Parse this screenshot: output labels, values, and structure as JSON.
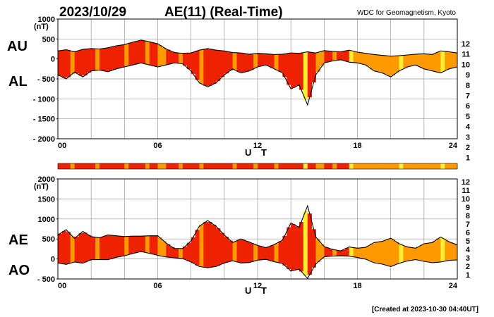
{
  "header": {
    "date": "2023/10/29",
    "title": "AE(11) (Real-Time)",
    "source": "WDC for Geomagnetism, Kyoto",
    "footer": "[Created at 2023-10-30 04:40UT]"
  },
  "kp_scale": {
    "labels": [
      "12",
      "11",
      "10",
      "9",
      "8",
      "7",
      "6",
      "5",
      "4",
      "3",
      "2",
      "1"
    ],
    "colors": [
      "#ff33aa",
      "#ee1111",
      "#ff9900",
      "#ffff33",
      "#77ee33",
      "#33dddd",
      "#0077ff",
      "#2222aa",
      "#cc33cc",
      "#000000",
      "#666666",
      "#bbbbbb"
    ]
  },
  "colors": {
    "station_11": "#ee2200",
    "station_10": "#ff9900",
    "station_9": "#ffee33",
    "curve": "#000000",
    "grid": "#999999"
  },
  "chart_data": [
    {
      "type": "area",
      "panel": "AU/AL",
      "series_labels": [
        "AU",
        "AL"
      ],
      "ylabel": "(nT)",
      "xlabel": "U T",
      "ylim": [
        -2000,
        1000
      ],
      "yticks": [
        1000,
        500,
        0,
        -500,
        -1000,
        -1500,
        -2000
      ],
      "ytick_labels": [
        "1000",
        "500",
        "0",
        "- 500",
        "- 1000",
        "- 1500",
        "- 2000"
      ],
      "xlim": [
        0,
        24
      ],
      "xticks": [
        0,
        6,
        12,
        18,
        24
      ],
      "xtick_labels": [
        "00",
        "06",
        "12",
        "18",
        "24"
      ],
      "grid": true,
      "x": [
        0,
        0.5,
        1,
        1.5,
        2,
        2.5,
        3,
        3.5,
        4,
        4.5,
        5,
        5.5,
        6,
        6.5,
        7,
        7.5,
        8,
        8.5,
        9,
        9.5,
        10,
        10.5,
        11,
        11.5,
        12,
        12.5,
        13,
        13.5,
        14,
        14.5,
        15,
        15.5,
        16,
        16.5,
        17,
        17.5,
        18,
        18.5,
        19,
        19.5,
        20,
        20.5,
        21,
        21.5,
        22,
        22.5,
        23,
        23.5,
        24
      ],
      "series": [
        {
          "name": "AU",
          "values": [
            200,
            230,
            180,
            240,
            260,
            250,
            280,
            330,
            360,
            420,
            470,
            430,
            380,
            250,
            160,
            140,
            150,
            220,
            260,
            220,
            200,
            160,
            150,
            120,
            140,
            130,
            110,
            120,
            150,
            140,
            180,
            150,
            210,
            190,
            180,
            220,
            170,
            140,
            110,
            90,
            70,
            80,
            100,
            120,
            130,
            110,
            200,
            180,
            150
          ]
        },
        {
          "name": "AL",
          "values": [
            -400,
            -500,
            -330,
            -450,
            -300,
            -280,
            -320,
            -250,
            -200,
            -150,
            -100,
            -150,
            -200,
            -150,
            -100,
            -120,
            -300,
            -600,
            -700,
            -600,
            -400,
            -250,
            -350,
            -300,
            -200,
            -150,
            -250,
            -350,
            -750,
            -650,
            -1150,
            -400,
            -100,
            -50,
            -20,
            -80,
            -100,
            -150,
            -300,
            -350,
            -450,
            -300,
            -200,
            -150,
            -250,
            -300,
            -350,
            -250,
            -200
          ]
        }
      ]
    },
    {
      "type": "area",
      "panel": "AE/AO",
      "series_labels": [
        "AE",
        "AO"
      ],
      "ylabel": "(nT)",
      "xlabel": "U T",
      "ylim": [
        -500,
        2000
      ],
      "yticks": [
        2000,
        1500,
        1000,
        500,
        0,
        -500
      ],
      "ytick_labels": [
        "2000",
        "1500",
        "1000",
        "500",
        "0",
        "- 500"
      ],
      "xlim": [
        0,
        24
      ],
      "xticks": [
        0,
        6,
        12,
        18,
        24
      ],
      "xtick_labels": [
        "00",
        "06",
        "12",
        "18",
        "24"
      ],
      "grid": true,
      "x": [
        0,
        0.5,
        1,
        1.5,
        2,
        2.5,
        3,
        3.5,
        4,
        4.5,
        5,
        5.5,
        6,
        6.5,
        7,
        7.5,
        8,
        8.5,
        9,
        9.5,
        10,
        10.5,
        11,
        11.5,
        12,
        12.5,
        13,
        13.5,
        14,
        14.5,
        15,
        15.5,
        16,
        16.5,
        17,
        17.5,
        18,
        18.5,
        19,
        19.5,
        20,
        20.5,
        21,
        21.5,
        22,
        22.5,
        23,
        23.5,
        24
      ],
      "series": [
        {
          "name": "AE",
          "values": [
            600,
            730,
            510,
            690,
            560,
            530,
            600,
            580,
            560,
            570,
            570,
            580,
            580,
            400,
            260,
            260,
            450,
            820,
            960,
            820,
            600,
            410,
            500,
            420,
            340,
            280,
            360,
            470,
            900,
            790,
            1330,
            550,
            310,
            240,
            200,
            300,
            270,
            290,
            410,
            440,
            520,
            380,
            300,
            270,
            380,
            410,
            550,
            430,
            350
          ]
        },
        {
          "name": "AO",
          "values": [
            -100,
            -135,
            -75,
            -105,
            -20,
            -15,
            -20,
            40,
            80,
            135,
            185,
            140,
            90,
            50,
            30,
            10,
            -75,
            -190,
            -220,
            -190,
            -100,
            -45,
            -100,
            -90,
            -30,
            -10,
            -70,
            -115,
            -300,
            -255,
            -485,
            -125,
            55,
            70,
            80,
            70,
            35,
            -5,
            -95,
            -130,
            -190,
            -110,
            -50,
            -15,
            -60,
            -95,
            -75,
            -35,
            -25
          ]
        }
      ]
    }
  ],
  "kp_bar": {
    "segment_levels": [
      11,
      11,
      11,
      10,
      11,
      11,
      11,
      11,
      11,
      10,
      11,
      11,
      11,
      11,
      11,
      11,
      10,
      11,
      11,
      11,
      11,
      10,
      11,
      11,
      10,
      10,
      11,
      11,
      11,
      10,
      11,
      11,
      11,
      11,
      10,
      11,
      11,
      11,
      11,
      11,
      11,
      11,
      10,
      11,
      11,
      11,
      11,
      10,
      11,
      11,
      11,
      11,
      10,
      11,
      11,
      11,
      11,
      11,
      11,
      9,
      11,
      11,
      10,
      10,
      11,
      11,
      10,
      11,
      11,
      11,
      9,
      10,
      10,
      10,
      10,
      10,
      10,
      10,
      10,
      10,
      10,
      10,
      9,
      10,
      10,
      10,
      10,
      10,
      10,
      10,
      10,
      10,
      9,
      10,
      10,
      10
    ]
  }
}
